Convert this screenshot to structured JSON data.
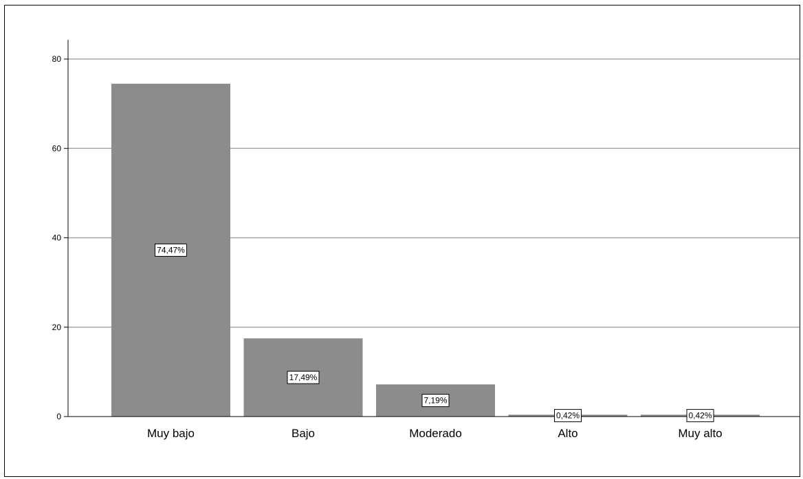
{
  "chart_data": {
    "type": "bar",
    "title": "",
    "xlabel": "",
    "ylabel": "",
    "categories": [
      "Muy bajo",
      "Bajo",
      "Moderado",
      "Alto",
      "Muy alto"
    ],
    "values": [
      74.47,
      17.49,
      7.19,
      0.42,
      0.42
    ],
    "data_labels": [
      "74,47%",
      "17,49%",
      "7,19%",
      "0,42%",
      "0,42%"
    ],
    "ylim": [
      0,
      80
    ],
    "yticks": [
      0,
      20,
      40,
      60,
      80
    ],
    "ytick_labels": [
      "0",
      "20",
      "40",
      "60",
      "80"
    ],
    "grid": true,
    "legend": "none",
    "colors": {
      "bar": "#8c8c8c",
      "grid": "#a6a6a6",
      "axis": "#000000",
      "label_box_fill": "#ffffff",
      "label_box_border": "#000000"
    }
  }
}
